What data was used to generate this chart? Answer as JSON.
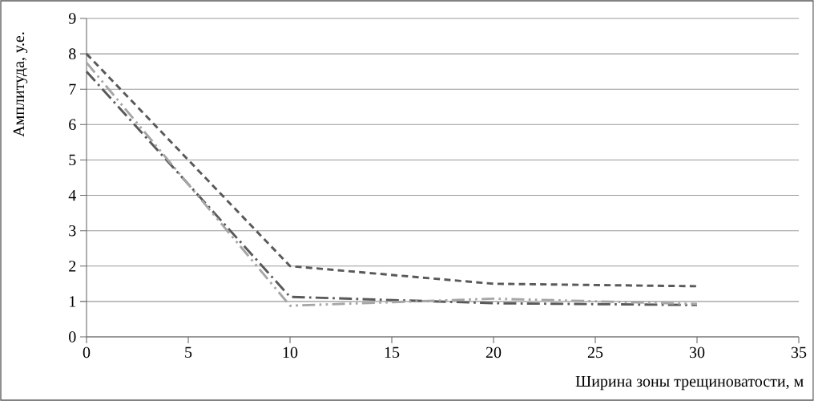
{
  "chart_data": {
    "type": "line",
    "xlabel": "Ширина зоны трещиноватости, м",
    "ylabel": "Амплитуда, у.е.",
    "x": [
      0,
      10,
      20,
      30
    ],
    "series": [
      {
        "color": "#595959",
        "line_style": "dashed",
        "values": [
          8,
          2,
          1.5,
          1.43
        ]
      },
      {
        "color": "#595959",
        "line_style": "dashdot",
        "values": [
          7.5,
          1.13,
          0.95,
          0.9
        ]
      },
      {
        "color": "#a6a6a6",
        "line_style": "dashdotdot",
        "values": [
          7.75,
          0.88,
          1.08,
          0.93
        ]
      }
    ],
    "xlim": [
      0,
      35
    ],
    "xticks": [
      0,
      5,
      10,
      15,
      20,
      25,
      30,
      35
    ],
    "ylim": [
      0,
      9
    ],
    "yticks": [
      0,
      1,
      2,
      3,
      4,
      5,
      6,
      7,
      8,
      9
    ],
    "grid": "y",
    "marker": "none"
  }
}
